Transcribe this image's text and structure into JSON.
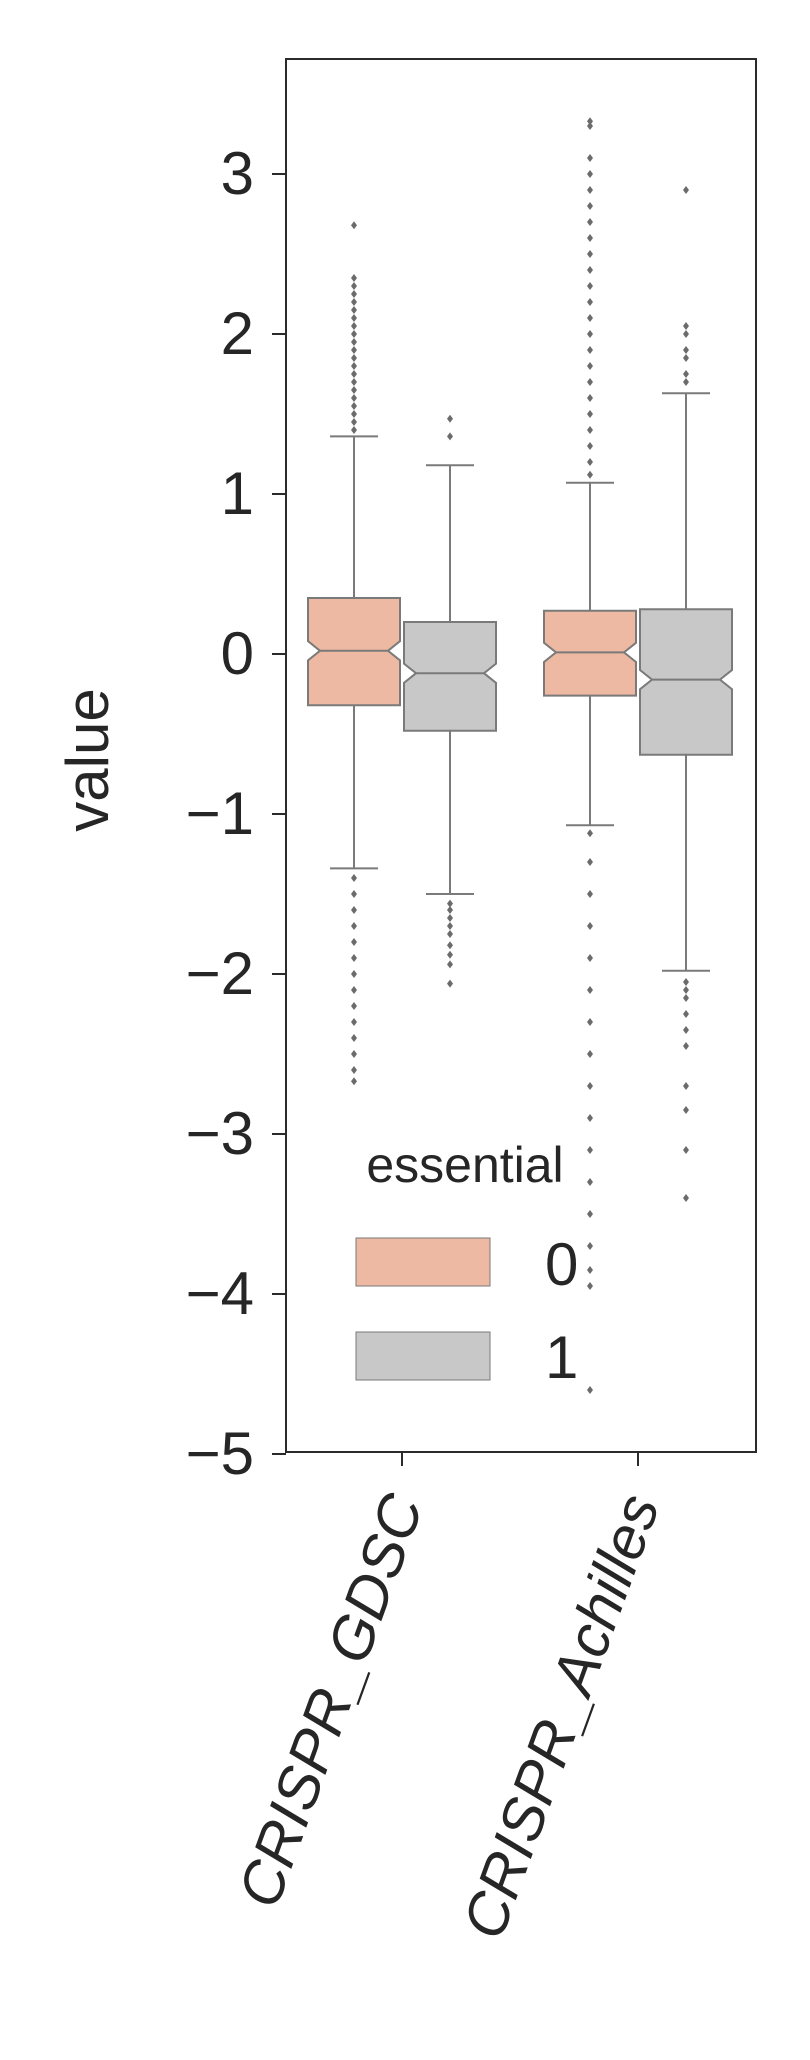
{
  "chart_data": {
    "type": "box",
    "ylabel": "value",
    "xlabel": "",
    "ylim": [
      -5,
      3.7
    ],
    "yticks": [
      3,
      2,
      1,
      0,
      -1,
      -2,
      -3,
      -4,
      -5
    ],
    "ytick_labels": [
      "3",
      "2",
      "1",
      "0",
      "−1",
      "−2",
      "−3",
      "−4",
      "−5"
    ],
    "categories": [
      "CRISPR_GDSC",
      "CRISPR_Achilles"
    ],
    "legend": {
      "title": "essential",
      "entries": [
        "0",
        "1"
      ],
      "placement": "lower-left"
    },
    "notched": true,
    "grid": false,
    "colors": {
      "0": "#eeb9a2",
      "1": "#c8c8c8",
      "line": "#7a7a7a",
      "axes": "#2b2b2b"
    },
    "series": [
      {
        "name": "0",
        "boxes": [
          {
            "category": "CRISPR_GDSC",
            "q1": -0.32,
            "median": 0.02,
            "q3": 0.35,
            "whisker_low": -1.34,
            "whisker_high": 1.36,
            "outliers": [
              2.68,
              2.35,
              2.3,
              2.25,
              2.2,
              2.15,
              2.1,
              2.05,
              2.0,
              1.95,
              1.9,
              1.85,
              1.8,
              1.75,
              1.7,
              1.65,
              1.6,
              1.55,
              1.5,
              1.45,
              1.4,
              -1.4,
              -1.5,
              -1.6,
              -1.7,
              -1.8,
              -1.9,
              -2.0,
              -2.1,
              -2.2,
              -2.3,
              -2.4,
              -2.5,
              -2.6,
              -2.67
            ]
          },
          {
            "category": "CRISPR_Achilles",
            "q1": -0.26,
            "median": 0.01,
            "q3": 0.27,
            "whisker_low": -1.07,
            "whisker_high": 1.07,
            "outliers": [
              3.33,
              3.3,
              3.1,
              3.0,
              2.9,
              2.8,
              2.7,
              2.6,
              2.5,
              2.4,
              2.3,
              2.2,
              2.1,
              2.0,
              1.9,
              1.8,
              1.7,
              1.6,
              1.5,
              1.4,
              1.3,
              1.2,
              1.12,
              -1.12,
              -1.3,
              -1.5,
              -1.7,
              -1.9,
              -2.1,
              -2.3,
              -2.5,
              -2.7,
              -2.9,
              -3.1,
              -3.3,
              -3.5,
              -3.7,
              -3.85,
              -3.95,
              -4.6
            ]
          }
        ]
      },
      {
        "name": "1",
        "boxes": [
          {
            "category": "CRISPR_GDSC",
            "q1": -0.48,
            "median": -0.12,
            "q3": 0.2,
            "whisker_low": -1.5,
            "whisker_high": 1.18,
            "outliers": [
              1.47,
              1.36,
              -1.56,
              -1.6,
              -1.65,
              -1.7,
              -1.75,
              -1.82,
              -1.88,
              -1.94,
              -2.06
            ]
          },
          {
            "category": "CRISPR_Achilles",
            "q1": -0.63,
            "median": -0.16,
            "q3": 0.28,
            "whisker_low": -1.98,
            "whisker_high": 1.63,
            "outliers": [
              2.9,
              2.05,
              2.0,
              1.9,
              1.85,
              1.75,
              1.7,
              -2.05,
              -2.1,
              -2.15,
              -2.25,
              -2.35,
              -2.45,
              -2.7,
              -2.85,
              -3.1,
              -3.4
            ]
          }
        ]
      }
    ]
  }
}
